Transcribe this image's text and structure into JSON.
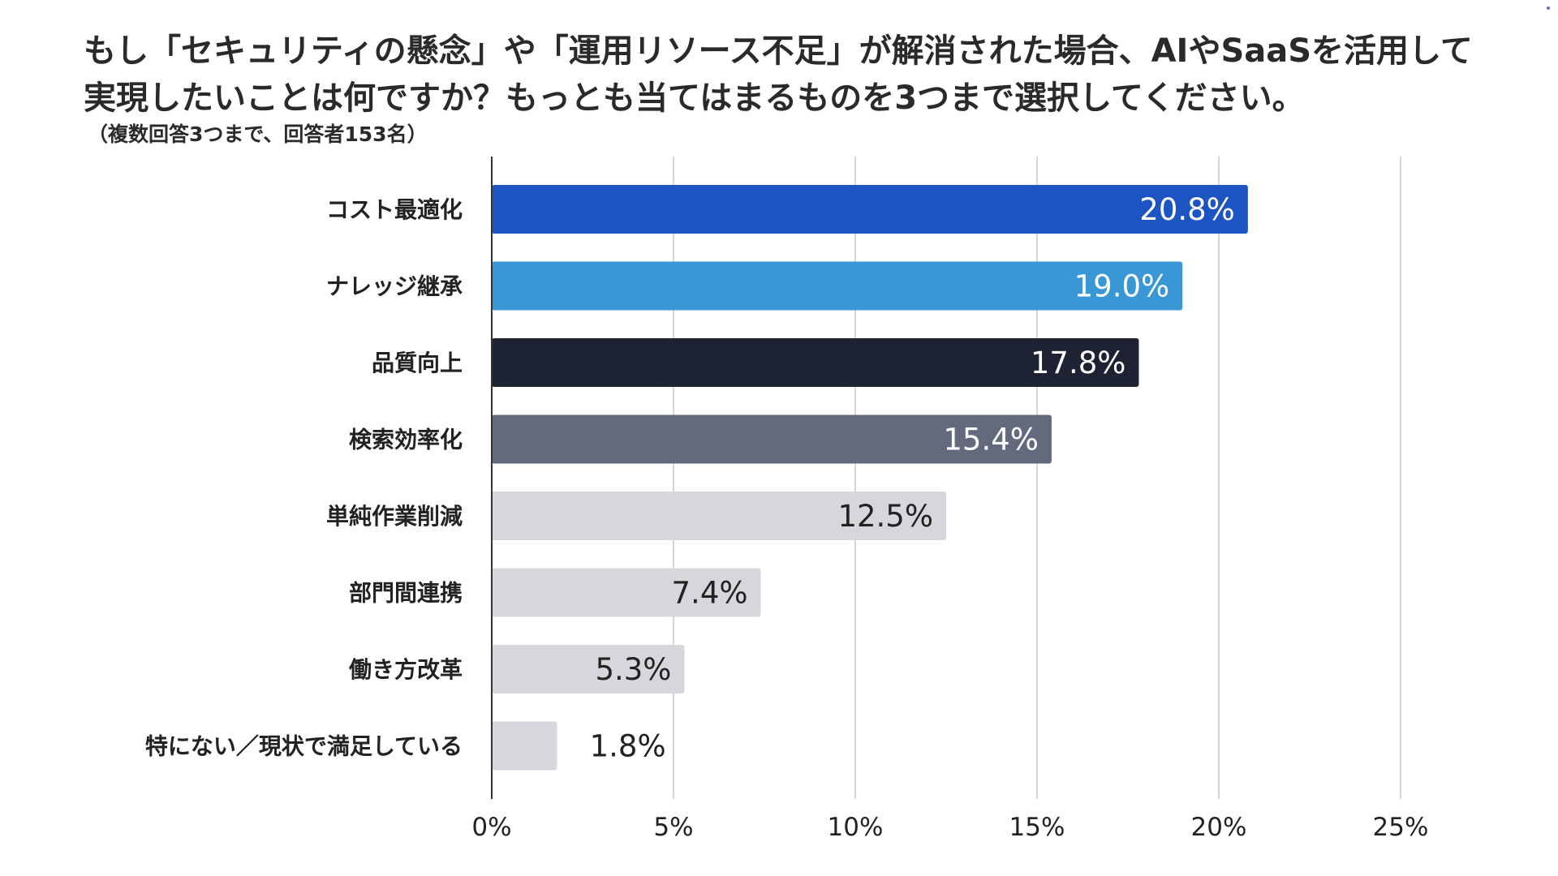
{
  "header": {
    "title_line1": "もし「セキュリティの懸念」や「運用リソース不足」が解消された場合、AIやSaaSを活用して",
    "title_line2": "実現したいことは何ですか？もっとも当てはまるものを3つまで選択してください。",
    "subtitle": "（複数回答3つまで、回答者153名）"
  },
  "chart_data": {
    "type": "bar",
    "orientation": "horizontal",
    "title": "もし「セキュリティの懸念」や「運用リソース不足」が解消された場合、AIやSaaSを活用して実現したいことは何ですか？もっとも当てはまるものを3つまで選択してください。",
    "subtitle": "（複数回答3つまで、回答者153名）",
    "categories": [
      "コスト最適化",
      "ナレッジ継承",
      "品質向上",
      "検索効率化",
      "単純作業削減",
      "部門間連携",
      "働き方改革",
      "特にない／現状で満足している"
    ],
    "values": [
      20.8,
      19.0,
      17.8,
      15.4,
      12.5,
      7.4,
      5.3,
      1.8
    ],
    "value_labels": [
      "20.8%",
      "19.0%",
      "17.8%",
      "15.4%",
      "12.5%",
      "7.4%",
      "5.3%",
      "1.8%"
    ],
    "colors": [
      "#1c54c4",
      "#3897d4",
      "#1e2333",
      "#636a7e",
      "#d6d7db",
      "#d6d7db",
      "#d6d7db",
      "#d6d7db"
    ],
    "label_colors": [
      "#ffffff",
      "#ffffff",
      "#ffffff",
      "#ffffff",
      "#222222",
      "#222222",
      "#222222",
      "#222222"
    ],
    "xlim": [
      0,
      25
    ],
    "xticks": [
      0,
      5,
      10,
      15,
      20,
      25
    ],
    "xtick_labels": [
      "0%",
      "5%",
      "10%",
      "15%",
      "20%",
      "25%"
    ],
    "xlabel": "",
    "ylabel": "",
    "grid": true,
    "legend": "none"
  }
}
